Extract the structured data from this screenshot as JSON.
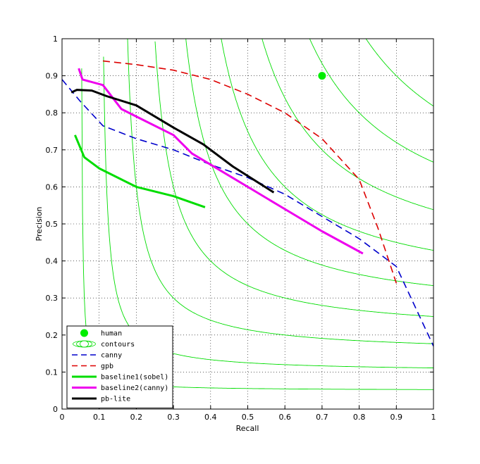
{
  "chart_data": {
    "type": "line",
    "xlabel": "Recall",
    "ylabel": "Precision",
    "xlim": [
      0,
      1
    ],
    "ylim": [
      0,
      1
    ],
    "xticks": [
      "0",
      "0.1",
      "0.2",
      "0.3",
      "0.4",
      "0.5",
      "0.6",
      "0.7",
      "0.8",
      "0.9",
      "1"
    ],
    "yticks": [
      "0",
      "0.1",
      "0.2",
      "0.3",
      "0.4",
      "0.5",
      "0.6",
      "0.7",
      "0.8",
      "0.9",
      "1"
    ],
    "grid": true,
    "legend_position": "bottom-left",
    "contour_levels": [
      0.1,
      0.2,
      0.3,
      0.4,
      0.5,
      0.6,
      0.7,
      0.8,
      0.9
    ],
    "series": [
      {
        "name": "human",
        "style": "marker",
        "color": "#00ee00",
        "x": [
          0.7
        ],
        "y": [
          0.9
        ]
      },
      {
        "name": "contours",
        "style": "contour",
        "color": "#00dd00",
        "x": [],
        "y": []
      },
      {
        "name": "canny",
        "style": "dashed",
        "color": "#0000cc",
        "x": [
          0.0,
          0.05,
          0.11,
          0.2,
          0.3,
          0.4,
          0.5,
          0.6,
          0.7,
          0.8,
          0.9,
          1.0
        ],
        "y": [
          0.89,
          0.83,
          0.765,
          0.73,
          0.7,
          0.66,
          0.625,
          0.58,
          0.52,
          0.46,
          0.385,
          0.17
        ]
      },
      {
        "name": "gpb",
        "style": "dashed",
        "color": "#dd0000",
        "x": [
          0.11,
          0.2,
          0.3,
          0.4,
          0.5,
          0.6,
          0.7,
          0.8,
          0.85,
          0.9
        ],
        "y": [
          0.94,
          0.93,
          0.915,
          0.89,
          0.85,
          0.8,
          0.73,
          0.62,
          0.49,
          0.34
        ]
      },
      {
        "name": "baseline1(sobel)",
        "style": "solid",
        "color": "#00dd00",
        "x": [
          0.035,
          0.06,
          0.1,
          0.16,
          0.2,
          0.3,
          0.385
        ],
        "y": [
          0.74,
          0.68,
          0.65,
          0.62,
          0.6,
          0.575,
          0.545
        ]
      },
      {
        "name": "baseline2(canny)",
        "style": "solid",
        "color": "#ee00ee",
        "x": [
          0.045,
          0.055,
          0.11,
          0.16,
          0.2,
          0.3,
          0.35,
          0.4,
          0.5,
          0.6,
          0.7,
          0.81
        ],
        "y": [
          0.92,
          0.89,
          0.875,
          0.81,
          0.79,
          0.74,
          0.69,
          0.66,
          0.6,
          0.54,
          0.48,
          0.42
        ]
      },
      {
        "name": "pb-lite",
        "style": "solid",
        "color": "#000000",
        "x": [
          0.025,
          0.04,
          0.08,
          0.12,
          0.2,
          0.3,
          0.38,
          0.46,
          0.57
        ],
        "y": [
          0.855,
          0.862,
          0.86,
          0.845,
          0.82,
          0.76,
          0.715,
          0.655,
          0.585
        ]
      }
    ]
  }
}
